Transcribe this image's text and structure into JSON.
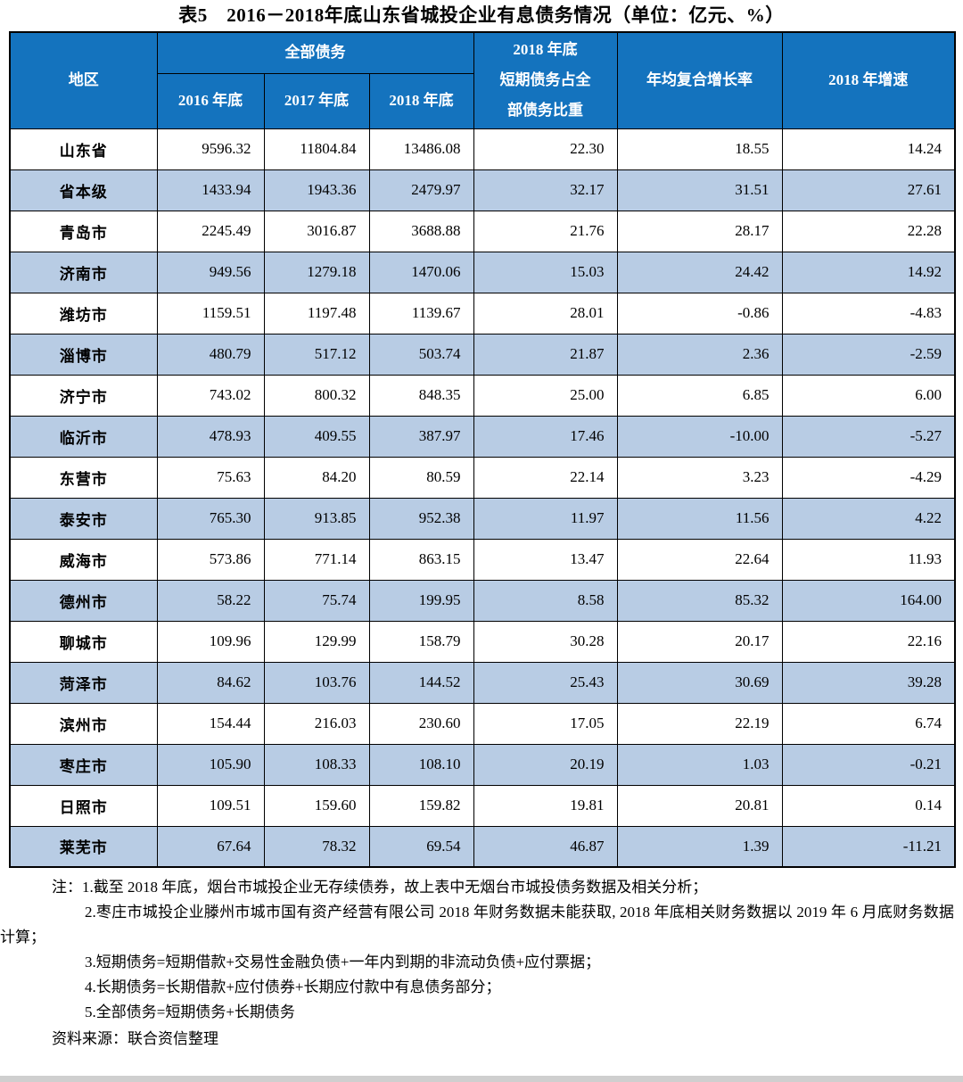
{
  "title": "表5　2016－2018年底山东省城投企业有息债务情况（单位：亿元、%）",
  "colors": {
    "header_bg": "#1473BE",
    "header_text": "#FFFFFF",
    "alt_row_bg": "#B8CCE4",
    "border_color": "#000000",
    "page_bg": "#FFFFFF",
    "bottom_strip": "#CFCFCF"
  },
  "table": {
    "header": {
      "region": "地区",
      "total_debt_group": "全部债务",
      "y2016": "2016 年底",
      "y2017": "2017 年底",
      "y2018": "2018 年底",
      "short_ratio_lines": [
        "2018 年底",
        "短期债务占全",
        "部债务比重"
      ],
      "cagr": "年均复合增长率",
      "growth_2018": "2018 年增速"
    },
    "rows": [
      [
        "山东省",
        "9596.32",
        "11804.84",
        "13486.08",
        "22.30",
        "18.55",
        "14.24"
      ],
      [
        "省本级",
        "1433.94",
        "1943.36",
        "2479.97",
        "32.17",
        "31.51",
        "27.61"
      ],
      [
        "青岛市",
        "2245.49",
        "3016.87",
        "3688.88",
        "21.76",
        "28.17",
        "22.28"
      ],
      [
        "济南市",
        "949.56",
        "1279.18",
        "1470.06",
        "15.03",
        "24.42",
        "14.92"
      ],
      [
        "潍坊市",
        "1159.51",
        "1197.48",
        "1139.67",
        "28.01",
        "-0.86",
        "-4.83"
      ],
      [
        "淄博市",
        "480.79",
        "517.12",
        "503.74",
        "21.87",
        "2.36",
        "-2.59"
      ],
      [
        "济宁市",
        "743.02",
        "800.32",
        "848.35",
        "25.00",
        "6.85",
        "6.00"
      ],
      [
        "临沂市",
        "478.93",
        "409.55",
        "387.97",
        "17.46",
        "-10.00",
        "-5.27"
      ],
      [
        "东营市",
        "75.63",
        "84.20",
        "80.59",
        "22.14",
        "3.23",
        "-4.29"
      ],
      [
        "泰安市",
        "765.30",
        "913.85",
        "952.38",
        "11.97",
        "11.56",
        "4.22"
      ],
      [
        "威海市",
        "573.86",
        "771.14",
        "863.15",
        "13.47",
        "22.64",
        "11.93"
      ],
      [
        "德州市",
        "58.22",
        "75.74",
        "199.95",
        "8.58",
        "85.32",
        "164.00"
      ],
      [
        "聊城市",
        "109.96",
        "129.99",
        "158.79",
        "30.28",
        "20.17",
        "22.16"
      ],
      [
        "菏泽市",
        "84.62",
        "103.76",
        "144.52",
        "25.43",
        "30.69",
        "39.28"
      ],
      [
        "滨州市",
        "154.44",
        "216.03",
        "230.60",
        "17.05",
        "22.19",
        "6.74"
      ],
      [
        "枣庄市",
        "105.90",
        "108.33",
        "108.10",
        "20.19",
        "1.03",
        "-0.21"
      ],
      [
        "日照市",
        "109.51",
        "159.60",
        "159.82",
        "19.81",
        "20.81",
        "0.14"
      ],
      [
        "莱芜市",
        "67.64",
        "78.32",
        "69.54",
        "46.87",
        "1.39",
        "-11.21"
      ]
    ]
  },
  "notes": [
    "注：1.截至 2018 年底，烟台市城投企业无存续债券，故上表中无烟台市城投债务数据及相关分析；",
    "2.枣庄市城投企业滕州市城市国有资产经营有限公司 2018 年财务数据未能获取, 2018 年底相关财务数据以 2019 年 6 月底财务数据计算；",
    "3.短期债务=短期借款+交易性金融负债+一年内到期的非流动负债+应付票据；",
    "4.长期债务=长期借款+应付债券+长期应付款中有息债务部分；",
    "5.全部债务=短期债务+长期债务"
  ],
  "source": "资料来源：联合资信整理"
}
